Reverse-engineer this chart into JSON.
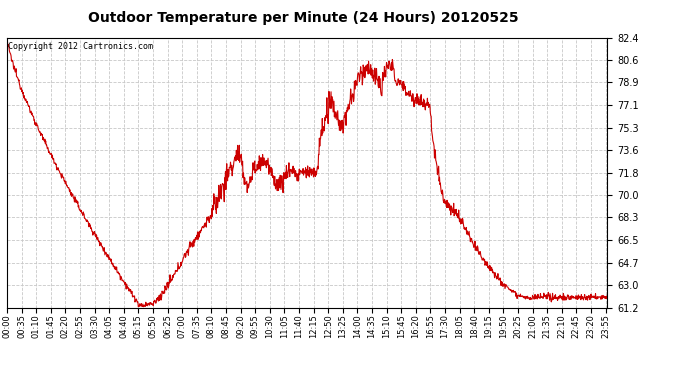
{
  "title": "Outdoor Temperature per Minute (24 Hours) 20120525",
  "copyright_text": "Copyright 2012 Cartronics.com",
  "line_color": "#cc0000",
  "background_color": "#ffffff",
  "plot_bg_color": "#ffffff",
  "grid_color": "#c8c8c8",
  "grid_style": "--",
  "yticks": [
    61.2,
    63.0,
    64.7,
    66.5,
    68.3,
    70.0,
    71.8,
    73.6,
    75.3,
    77.1,
    78.9,
    80.6,
    82.4
  ],
  "ylim": [
    61.2,
    82.4
  ],
  "xtick_labels": [
    "00:00",
    "00:35",
    "01:10",
    "01:45",
    "02:20",
    "02:55",
    "03:30",
    "04:05",
    "04:40",
    "05:15",
    "05:50",
    "06:25",
    "07:00",
    "07:35",
    "08:10",
    "08:45",
    "09:20",
    "09:55",
    "10:30",
    "11:05",
    "11:40",
    "12:15",
    "12:50",
    "13:25",
    "14:00",
    "14:35",
    "15:10",
    "15:45",
    "16:20",
    "16:55",
    "17:30",
    "18:05",
    "18:40",
    "19:15",
    "19:50",
    "20:25",
    "21:00",
    "21:35",
    "22:10",
    "22:45",
    "23:20",
    "23:55"
  ]
}
